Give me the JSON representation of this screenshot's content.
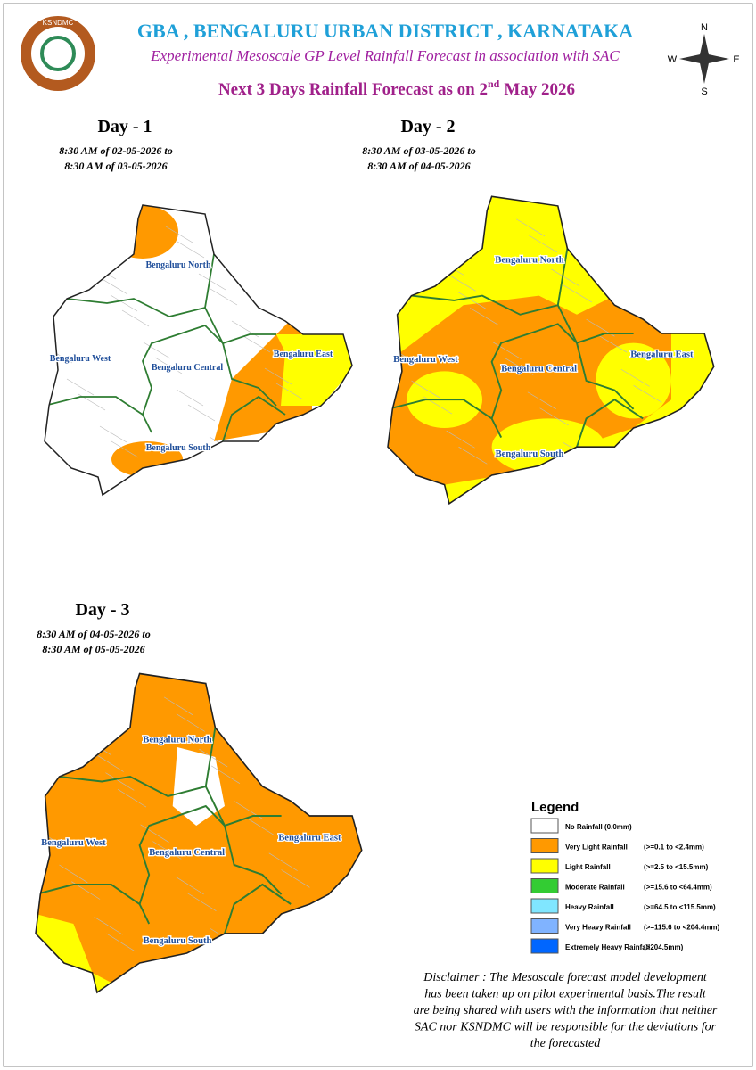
{
  "header": {
    "logo_text": "KSNDMC",
    "title": "GBA , BENGALURU  URBAN DISTRICT , KARNATAKA",
    "subtitle": "Experimental Mesoscale GP Level Rainfall Forecast in association with SAC",
    "forecast_title": {
      "prefix": "Next 3 Days Rainfall Forecast as on 2",
      "sup": "nd",
      "suffix": "May 2026"
    },
    "compass": [
      "N",
      "E",
      "S",
      "W"
    ]
  },
  "days": [
    {
      "title": "Day - 1",
      "period": [
        "8:30 AM of 02-05-2026 to",
        "8:30 AM of 03-05-2026"
      ],
      "regions": [
        "Bengaluru North",
        "Bengaluru West",
        "Bengaluru Central",
        "Bengaluru East",
        "Bengaluru South"
      ],
      "base_color": "#ffffff"
    },
    {
      "title": "Day - 2",
      "period": [
        "8:30 AM of 03-05-2026 to",
        "8:30 AM of 04-05-2026"
      ],
      "regions": [
        "Bengaluru North",
        "Bengaluru West",
        "Bengaluru Central",
        "Bengaluru East",
        "Bengaluru South"
      ],
      "base_color": "#ffff00"
    },
    {
      "title": "Day - 3",
      "period": [
        "8:30 AM of 04-05-2026 to",
        "8:30 AM of 05-05-2026"
      ],
      "regions": [
        "Bengaluru North",
        "Bengaluru West",
        "Bengaluru Central",
        "Bengaluru East",
        "Bengaluru South"
      ],
      "base_color": "#ff9900"
    }
  ],
  "legend": {
    "title": "Legend",
    "items": [
      {
        "label": "No Rainfall (0.0mm)",
        "color": "#ffffff"
      },
      {
        "label": "Very Light Rainfall",
        "range": "(>=0.1 to <2.4mm)",
        "color": "#ff9900"
      },
      {
        "label": "Light Rainfall",
        "range": "(>=2.5 to <15.5mm)",
        "color": "#ffff00"
      },
      {
        "label": "Moderate Rainfall",
        "range": "(>=15.6 to <64.4mm)",
        "color": "#33cc33"
      },
      {
        "label": "Heavy Rainfall",
        "range": "(>=64.5 to <115.5mm)",
        "color": "#80e6ff"
      },
      {
        "label": "Very Heavy Rainfall",
        "range": "(>=115.6 to <204.4mm)",
        "color": "#80b3ff"
      },
      {
        "label": "Extremely Heavy Rainfall",
        "range": "(>204.5mm)",
        "color": "#0066ff"
      }
    ]
  },
  "disclaimer": [
    "Disclaimer : The Mesoscale forecast model development",
    "has been taken up on pilot experimental basis.The result",
    "are being shared with users with the information that neither",
    "SAC nor KSNDMC will be responsible  for the deviations for",
    "the forecasted"
  ]
}
